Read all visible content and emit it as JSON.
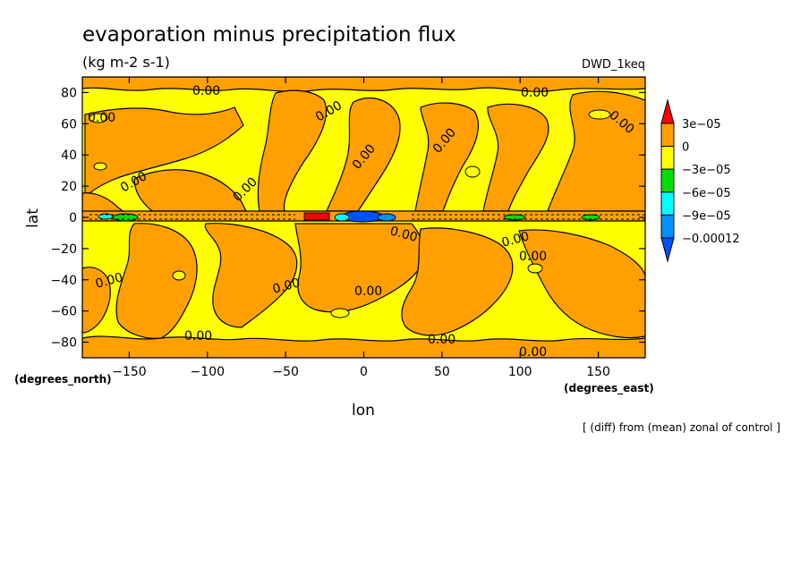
{
  "chart_data": {
    "type": "heatmap",
    "title": "evaporation minus precipitation flux",
    "units": "(kg m-2 s-1)",
    "model": "DWD_1keq",
    "xlabel": "lon",
    "ylabel": "lat",
    "x_units": "(degrees_east)",
    "y_units": "(degrees_north)",
    "footnote": "[ (diff) from (mean) zonal of control ]",
    "xlim": [
      -180,
      180
    ],
    "ylim": [
      -90,
      90
    ],
    "x_ticks": [
      -150,
      -100,
      -50,
      0,
      50,
      100,
      150
    ],
    "y_ticks": [
      80,
      60,
      40,
      20,
      0,
      -20,
      -40,
      -60,
      -80
    ],
    "x_tick_labels": [
      "−150",
      "−100",
      "−50",
      "0",
      "50",
      "100",
      "150"
    ],
    "y_tick_labels": [
      "80",
      "60",
      "40",
      "20",
      "0",
      "−20",
      "−40",
      "−60",
      "−80"
    ],
    "colorbar": {
      "labels": [
        "3e−05",
        "0",
        "−3e−05",
        "−6e−05",
        "−9e−05",
        "−0.00012"
      ],
      "levels": [
        3e-05,
        0,
        -3e-05,
        -6e-05,
        -9e-05,
        -0.00012
      ],
      "colors": [
        "#ff0000",
        "#ffa000",
        "#ffff00",
        "#00dd00",
        "#00ffff",
        "#0090ff",
        "#0050ff"
      ]
    },
    "contour_label": "0.00",
    "colors": {
      "positive": "#ffa000",
      "near_zero": "#ffff00",
      "strong_positive": "#ff0000",
      "negative_1": "#00dd00",
      "negative_2": "#00ffff",
      "negative_3": "#0090ff",
      "negative_4": "#0050ff"
    }
  }
}
